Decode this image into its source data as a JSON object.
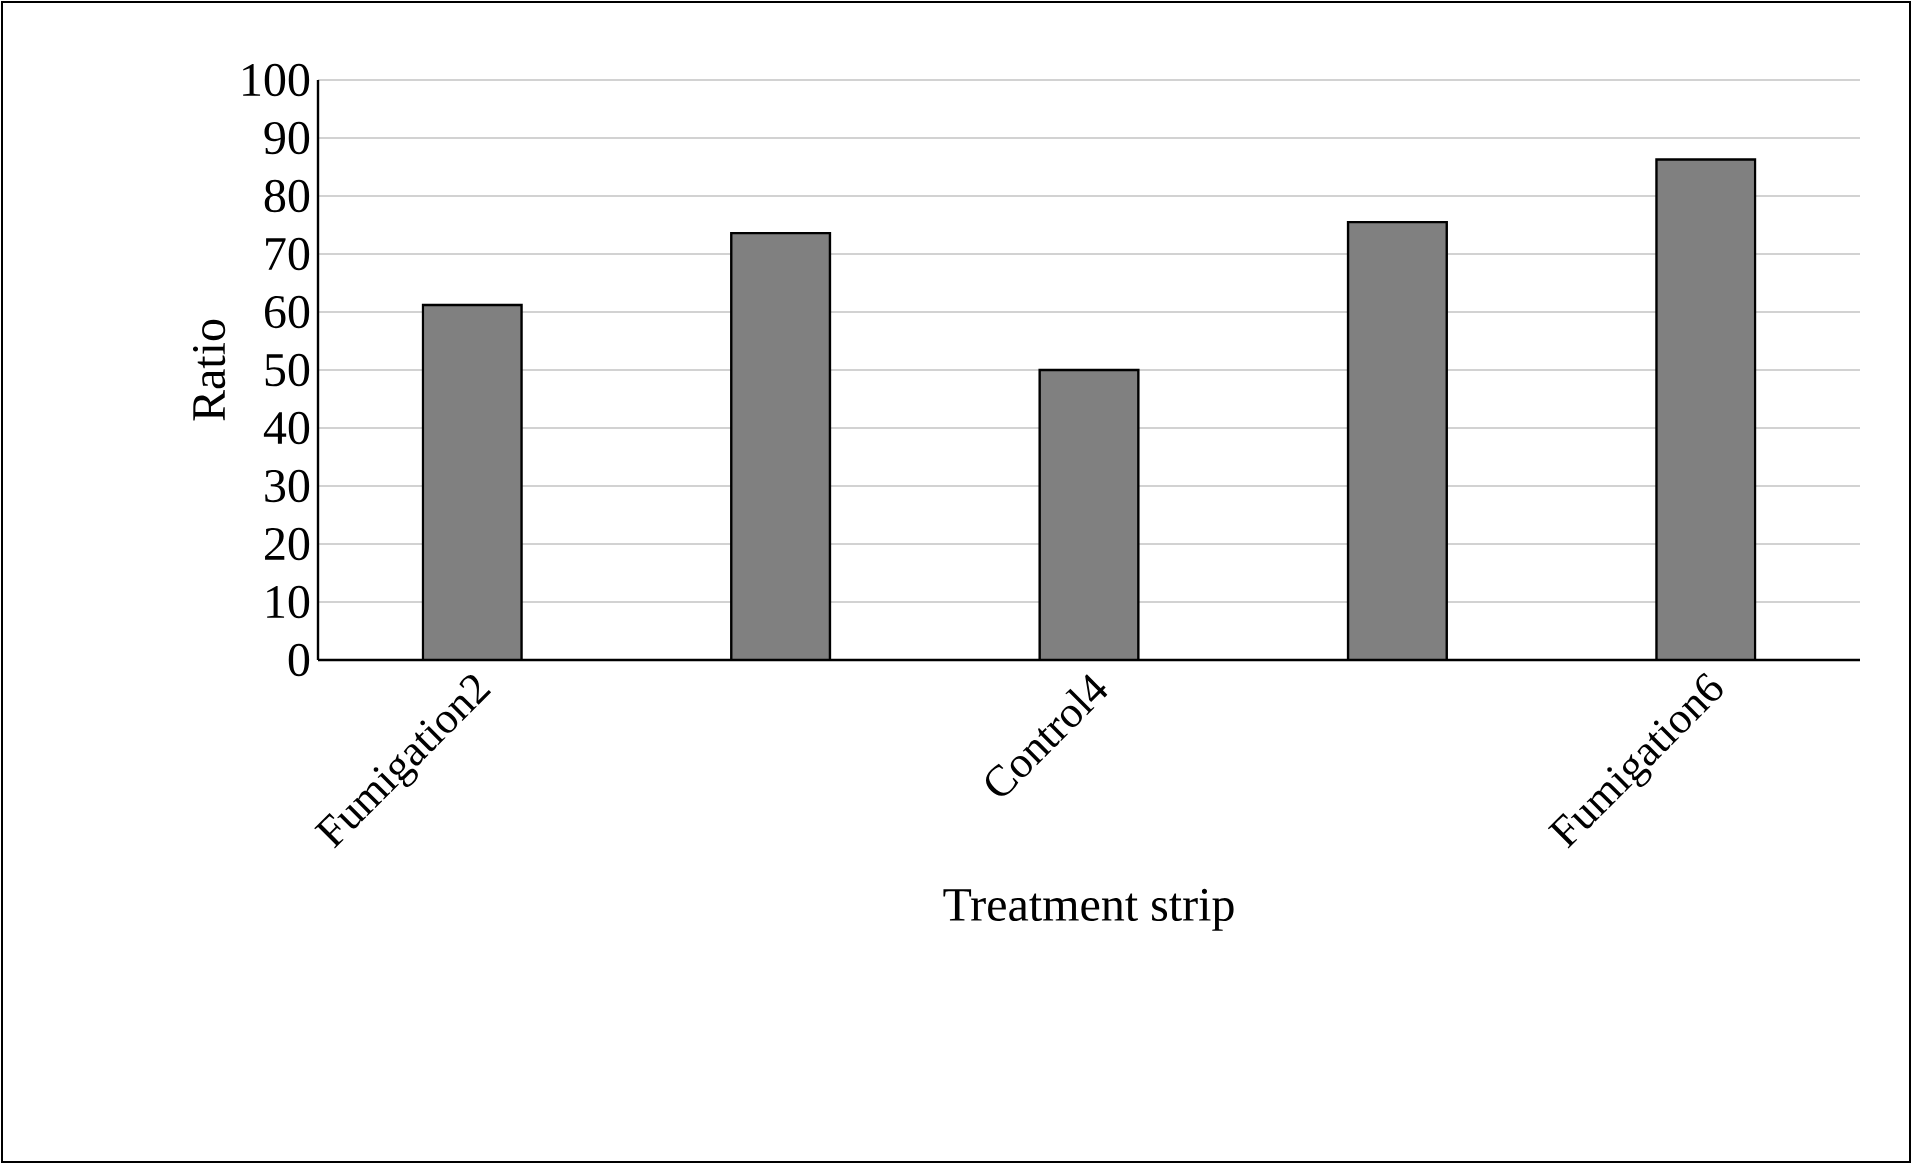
{
  "chart_data": {
    "type": "bar",
    "xlabel": "Treatment strip",
    "ylabel": "Ratio",
    "categories": [
      "Fumigation2",
      null,
      "Control4",
      null,
      "Fumigation6"
    ],
    "values": [
      61.2,
      73.6,
      50,
      75.5,
      86.3
    ],
    "color": "#808080",
    "ylim": [
      0,
      100
    ],
    "yticks": [
      0,
      10,
      20,
      30,
      40,
      50,
      60,
      70,
      80,
      90,
      100
    ],
    "grid": "y"
  }
}
